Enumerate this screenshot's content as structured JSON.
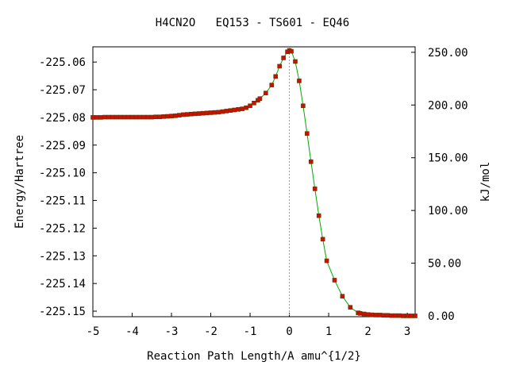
{
  "chart_data": {
    "type": "line",
    "title": "H4CN2O   EQ153 - TS601 - EQ46",
    "xlabel": "Reaction Path Length/A amu^{1/2}",
    "ylabel": "Energy/Hartree",
    "y2label": "kJ/mol",
    "xlim": [
      -5.0,
      3.2
    ],
    "ylim": [
      -225.152,
      -225.0545
    ],
    "x_ticks": [
      "-5",
      "-4",
      "-3",
      "-2",
      "-1",
      "0",
      "1",
      "2",
      "3"
    ],
    "y_ticks": [
      "-225.06",
      "-225.07",
      "-225.08",
      "-225.09",
      "-225.10",
      "-225.11",
      "-225.12",
      "-225.13",
      "-225.14",
      "-225.15"
    ],
    "y2_ticks": [
      "250.00",
      "200.00",
      "150.00",
      "100.00",
      "50.00",
      "0.00"
    ],
    "ts_marker_x": 0.0,
    "colors": {
      "line": "#00aa00",
      "marker": "#cc1100",
      "marker_edge": "#663300",
      "ts_line": "#999999"
    },
    "points_x": [
      -5.0,
      -4.9,
      -4.8,
      -4.7,
      -4.6,
      -4.5,
      -4.4,
      -4.3,
      -4.2,
      -4.1,
      -4.0,
      -3.9,
      -3.8,
      -3.7,
      -3.6,
      -3.5,
      -3.4,
      -3.3,
      -3.2,
      -3.1,
      -3.0,
      -2.9,
      -2.8,
      -2.7,
      -2.6,
      -2.5,
      -2.4,
      -2.3,
      -2.2,
      -2.1,
      -2.0,
      -1.9,
      -1.8,
      -1.7,
      -1.6,
      -1.5,
      -1.4,
      -1.3,
      -1.2,
      -1.1,
      -1.0,
      -0.9,
      -0.8,
      -0.75,
      -0.6,
      -0.45,
      -0.35,
      -0.25,
      -0.15,
      -0.05,
      0.0,
      0.05,
      0.15,
      0.25,
      0.35,
      0.45,
      0.55,
      0.65,
      0.75,
      0.85,
      0.95,
      1.15,
      1.35,
      1.55,
      1.75,
      1.8,
      1.9,
      2.0,
      2.1,
      2.2,
      2.3,
      2.4,
      2.5,
      2.6,
      2.7,
      2.8,
      2.9,
      3.0,
      3.1,
      3.2
    ],
    "points_y": [
      -225.08,
      -225.08,
      -225.08,
      -225.0799,
      -225.0799,
      -225.0799,
      -225.0799,
      -225.0799,
      -225.0799,
      -225.0799,
      -225.0799,
      -225.0799,
      -225.0799,
      -225.0799,
      -225.0799,
      -225.0799,
      -225.0798,
      -225.0798,
      -225.0797,
      -225.0796,
      -225.0795,
      -225.0794,
      -225.0792,
      -225.079,
      -225.0789,
      -225.0788,
      -225.0787,
      -225.0786,
      -225.0785,
      -225.0784,
      -225.0783,
      -225.0782,
      -225.0781,
      -225.0779,
      -225.0777,
      -225.0775,
      -225.0773,
      -225.0771,
      -225.0769,
      -225.0765,
      -225.0758,
      -225.0748,
      -225.0738,
      -225.0732,
      -225.0712,
      -225.0683,
      -225.0652,
      -225.0615,
      -225.0585,
      -225.0563,
      -225.0558,
      -225.0561,
      -225.0598,
      -225.0668,
      -225.0758,
      -225.0858,
      -225.096,
      -225.1058,
      -225.1155,
      -225.124,
      -225.1318,
      -225.1388,
      -225.1446,
      -225.1486,
      -225.1506,
      -225.1508,
      -225.151,
      -225.1512,
      -225.1513,
      -225.1514,
      -225.1514,
      -225.1515,
      -225.1515,
      -225.1516,
      -225.1516,
      -225.1516,
      -225.1517,
      -225.1517,
      -225.1517,
      -225.1517
    ]
  }
}
